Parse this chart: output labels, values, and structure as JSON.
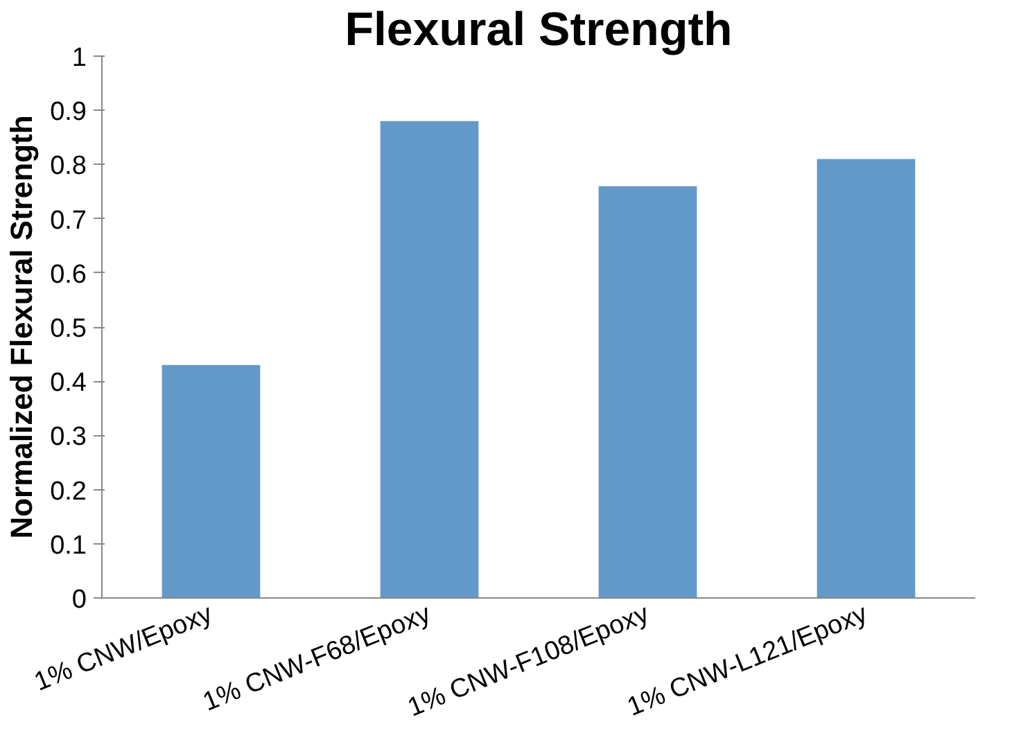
{
  "chart_data": {
    "type": "bar",
    "title": "Flexural Strength",
    "ylabel": "Normalized Flexural Strength",
    "categories": [
      "1% CNW/Epoxy",
      "1% CNW-F68/Epoxy",
      "1% CNW-F108/Epoxy",
      "1% CNW-L121/Epoxy"
    ],
    "values": [
      0.43,
      0.88,
      0.76,
      0.81
    ],
    "color": "#6399c9",
    "ylim": [
      0,
      1
    ],
    "yticks": [
      0,
      0.1,
      0.2,
      0.3,
      0.4,
      0.5,
      0.6,
      0.7,
      0.8,
      0.9,
      1
    ],
    "grid": false
  }
}
